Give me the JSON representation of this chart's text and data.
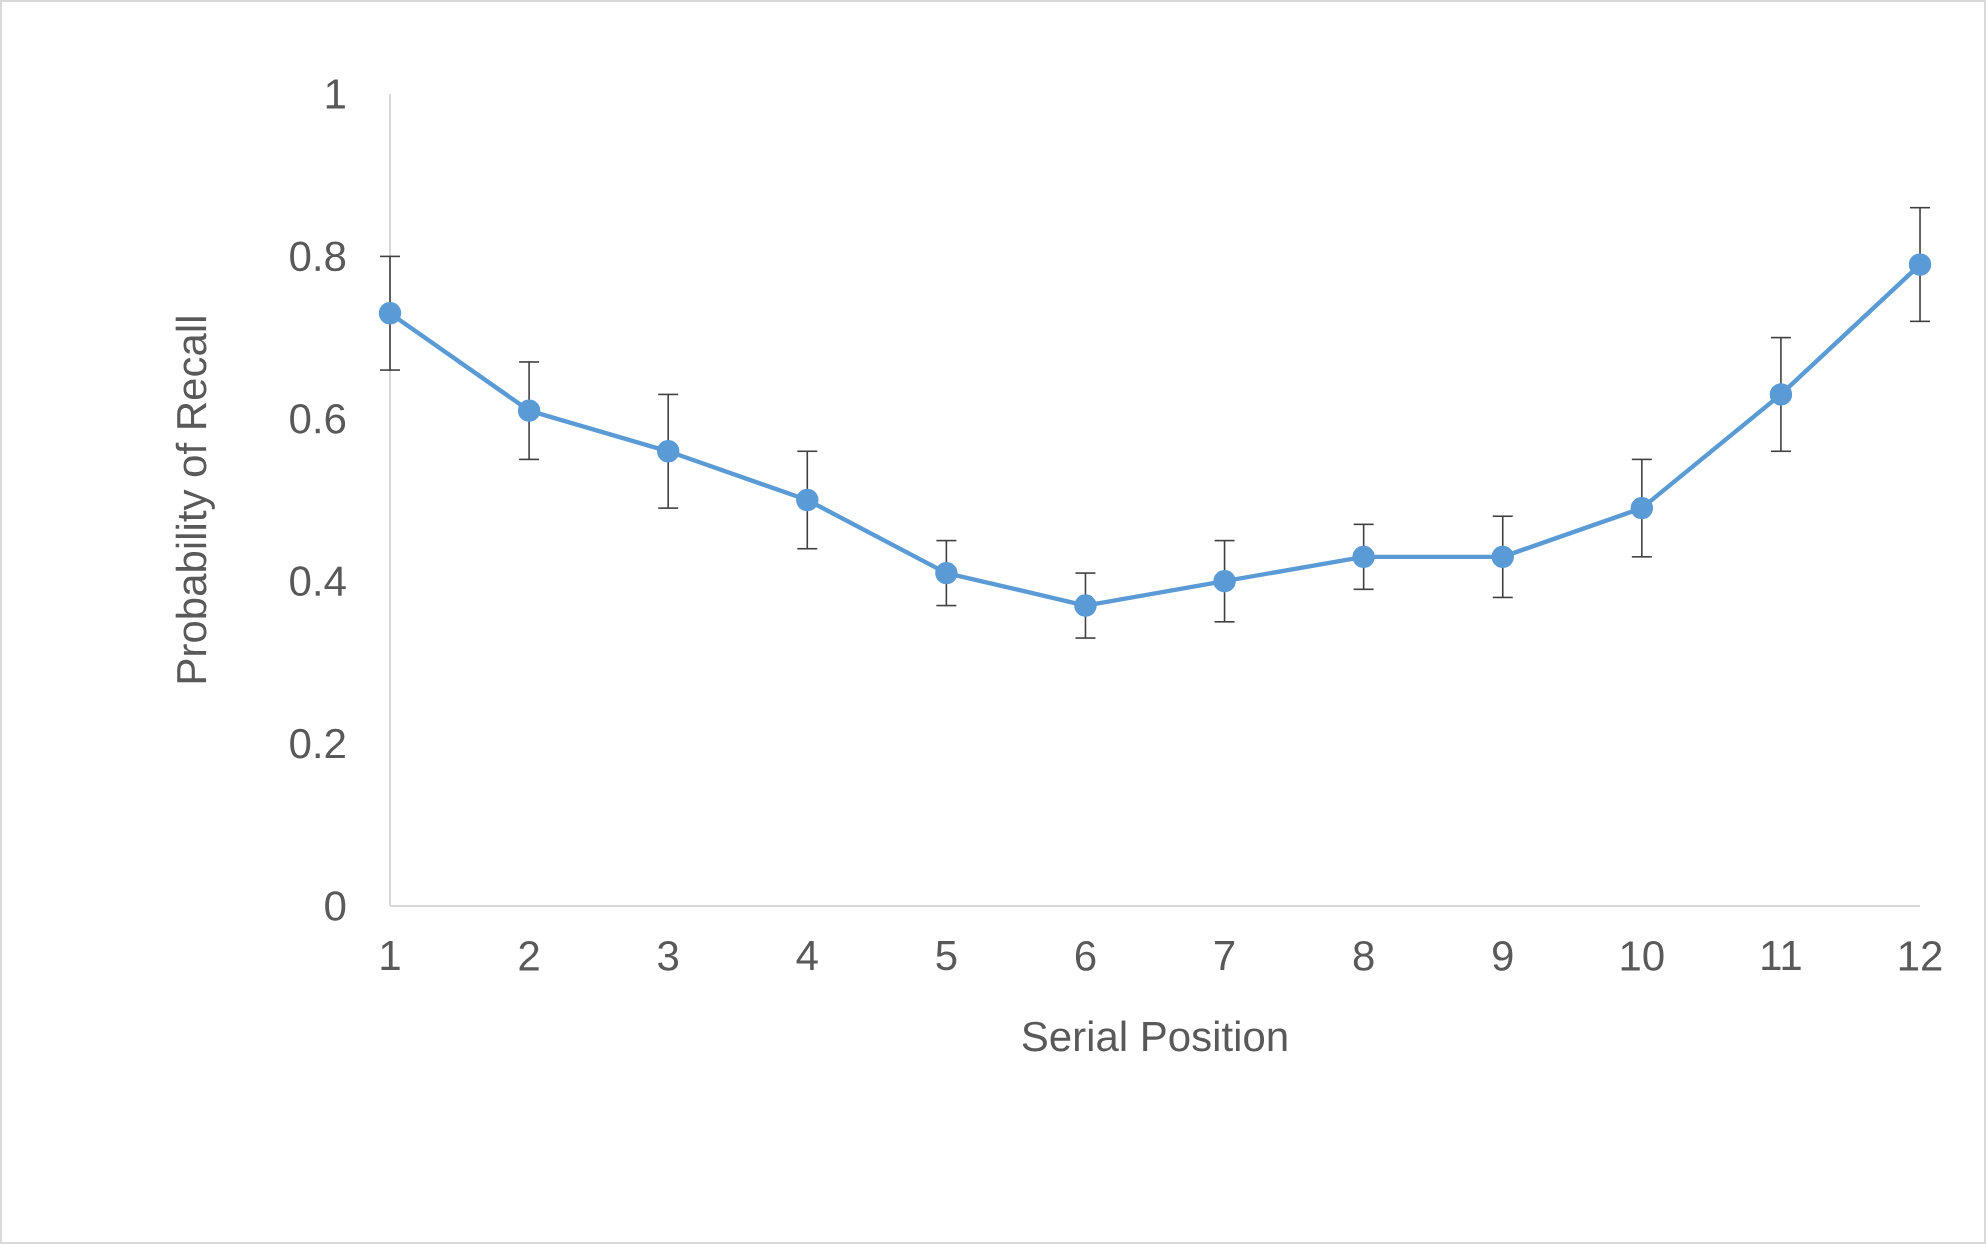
{
  "chart_data": {
    "type": "line",
    "xlabel": "Serial Position",
    "ylabel": "Probability of Recall",
    "categories": [
      "1",
      "2",
      "3",
      "4",
      "5",
      "6",
      "7",
      "8",
      "9",
      "10",
      "11",
      "12"
    ],
    "values": [
      0.73,
      0.61,
      0.56,
      0.5,
      0.41,
      0.37,
      0.4,
      0.43,
      0.43,
      0.49,
      0.63,
      0.79
    ],
    "errors": [
      0.07,
      0.06,
      0.07,
      0.06,
      0.04,
      0.04,
      0.05,
      0.04,
      0.05,
      0.06,
      0.07,
      0.07
    ],
    "color": "#5b9bd5",
    "marker": "circle",
    "line_style": "solid",
    "ylim": [
      0,
      1
    ],
    "yticks": [
      0,
      0.2,
      0.4,
      0.6,
      0.8,
      1
    ]
  }
}
